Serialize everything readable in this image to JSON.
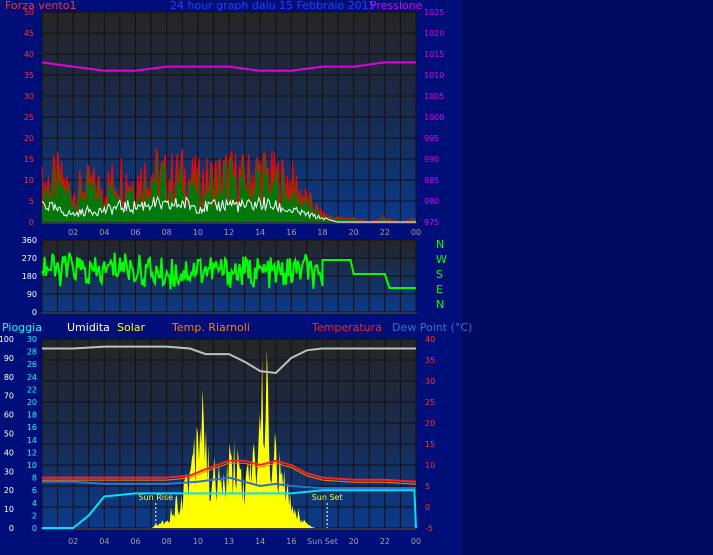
{
  "header": {
    "left_label": "Forza vento1",
    "title": "24 hour graph dalu 15 Febbraio 2015",
    "right_label": "Pressione"
  },
  "legend": {
    "pioggia": "Pioggia",
    "umidita": "Umidita",
    "solar": "Solar",
    "temp_riarnoli": "Temp. Riarnoli",
    "temperatura": "Temperatura",
    "dew_point": "Dew Point (°C)"
  },
  "hours": [
    "02",
    "04",
    "06",
    "08",
    "10",
    "12",
    "14",
    "16",
    "18",
    "20",
    "22",
    "00"
  ],
  "bottom_hours": [
    "02",
    "04",
    "06",
    "08",
    "10",
    "13",
    "14",
    "16",
    "Sun Set",
    "20",
    "22",
    "00"
  ],
  "compass": [
    "N",
    "W",
    "S",
    "E",
    "N"
  ],
  "colors": {
    "wind": "#ff0000",
    "gust": "#ffffff",
    "wind_avg": "#00a000",
    "pressure": "#e000e0",
    "direction": "#00ff00",
    "humidity": "#c0c0c0",
    "solar": "#ffff00",
    "temperature": "#ff2020",
    "dew_point": "#3070d0",
    "rain": "#00e0ff"
  },
  "chart_data": [
    {
      "type": "line",
      "name": "wind-pressure",
      "y_left": {
        "label": "Forza vento1",
        "ticks": [
          0,
          5,
          10,
          15,
          20,
          25,
          30,
          35,
          40,
          45,
          50
        ],
        "range": [
          0,
          50
        ]
      },
      "y_right": {
        "label": "Pressione",
        "ticks": [
          975,
          980,
          985,
          990,
          995,
          1000,
          1005,
          1010,
          1015,
          1020,
          1025
        ],
        "range": [
          975,
          1025
        ]
      },
      "x_ticks": [
        "02",
        "04",
        "06",
        "08",
        "10",
        "12",
        "14",
        "16",
        "18",
        "20",
        "22",
        "00"
      ],
      "series": [
        {
          "key": "wind",
          "hours": [
            0,
            1,
            2,
            3,
            4,
            5,
            6,
            7,
            8,
            9,
            10,
            11,
            12,
            13,
            14,
            15,
            16,
            17,
            18,
            19,
            20,
            21,
            22,
            23,
            24
          ],
          "values": [
            10,
            12,
            8,
            10,
            9,
            13,
            11,
            14,
            12,
            13,
            11,
            12,
            13,
            12,
            14,
            12,
            11,
            6,
            2,
            1,
            1,
            0,
            1,
            0,
            1
          ]
        },
        {
          "key": "gust",
          "hours": [
            0,
            1,
            2,
            3,
            4,
            5,
            6,
            7,
            8,
            9,
            10,
            11,
            12,
            13,
            14,
            15,
            16,
            17,
            18,
            19,
            20,
            21,
            22,
            23,
            24
          ],
          "values": [
            5,
            3,
            2,
            3,
            3,
            4,
            4,
            5,
            4,
            5,
            4,
            4,
            5,
            4,
            5,
            4,
            3,
            2,
            1,
            0,
            0,
            0,
            0,
            0,
            0
          ]
        },
        {
          "key": "pressure",
          "hours": [
            0,
            2,
            4,
            6,
            8,
            10,
            12,
            14,
            16,
            18,
            20,
            22,
            24
          ],
          "values": [
            1013,
            1012,
            1011,
            1011,
            1012,
            1012,
            1012,
            1011,
            1011,
            1012,
            1012,
            1013,
            1013
          ]
        }
      ]
    },
    {
      "type": "line",
      "name": "wind-direction",
      "y_ticks": [
        0,
        90,
        180,
        270,
        360
      ],
      "y_range": [
        0,
        360
      ],
      "compass": [
        "N",
        "W",
        "S",
        "E",
        "N"
      ],
      "series": [
        {
          "key": "direction",
          "hours": [
            0,
            1,
            2,
            3,
            4,
            5,
            6,
            7,
            8,
            9,
            10,
            11,
            12,
            13,
            14,
            15,
            16,
            17,
            18,
            19,
            20,
            21,
            22,
            23,
            24
          ],
          "values": [
            240,
            200,
            230,
            190,
            200,
            240,
            210,
            200,
            190,
            200,
            220,
            210,
            200,
            200,
            200,
            190,
            200,
            220,
            120,
            260,
            250,
            190,
            190,
            120,
            120
          ]
        }
      ]
    },
    {
      "type": "line",
      "name": "weather",
      "y_left_outer": {
        "label": "Pioggia",
        "ticks": [
          0,
          10,
          20,
          30,
          40,
          50,
          60,
          70,
          80,
          90,
          100
        ]
      },
      "y_left_inner": {
        "ticks": [
          0,
          2,
          4,
          6,
          8,
          10,
          12,
          14,
          16,
          18,
          20,
          22,
          24,
          26,
          28,
          30
        ]
      },
      "y_right": {
        "label": "Dew Point (°C)",
        "ticks": [
          -5,
          0,
          5,
          10,
          15,
          20,
          25,
          30,
          35,
          40
        ],
        "range": [
          -5,
          40
        ]
      },
      "x_ticks": [
        "02",
        "04",
        "06",
        "08",
        "10",
        "13",
        "14",
        "16",
        "Sun Set",
        "20",
        "22",
        "00"
      ],
      "annotations": [
        {
          "text": "Sun Rise",
          "hour": 7.3
        },
        {
          "text": "Sun Set",
          "hour": 18.3
        }
      ],
      "series": [
        {
          "key": "humidity",
          "hours": [
            0,
            2,
            4,
            6,
            8,
            9.5,
            10.5,
            12,
            13,
            14,
            15,
            16,
            17,
            18,
            20,
            22,
            24
          ],
          "values": [
            95,
            95,
            96,
            96,
            96,
            95,
            92,
            92,
            88,
            83,
            82,
            90,
            94,
            95,
            95,
            95,
            95
          ]
        },
        {
          "key": "temperature",
          "hours": [
            0,
            2,
            4,
            6,
            8,
            9.5,
            10.5,
            12,
            13,
            14,
            15,
            16,
            17,
            18,
            20,
            22,
            24
          ],
          "values": [
            7,
            7,
            7,
            7,
            7,
            7.5,
            9,
            11,
            11,
            10,
            11,
            10,
            8,
            7,
            6.5,
            6.5,
            6
          ]
        },
        {
          "key": "dew_point",
          "hours": [
            0,
            2,
            4,
            6,
            8,
            10,
            12,
            13,
            14,
            15,
            16,
            18,
            20,
            22,
            24
          ],
          "values": [
            6,
            6,
            5.5,
            5.5,
            5.5,
            6,
            7,
            6,
            5,
            5.5,
            5,
            4.5,
            4.5,
            4.5,
            4.5
          ]
        },
        {
          "key": "rain",
          "hours": [
            0,
            2,
            3,
            4,
            6,
            8,
            10,
            12,
            14,
            16,
            18,
            20,
            22,
            23.9,
            24
          ],
          "values": [
            0,
            0,
            2,
            5,
            5.5,
            5.5,
            5.5,
            5.5,
            5.5,
            5.5,
            6,
            6,
            6,
            6,
            0
          ]
        },
        {
          "key": "solar",
          "hours": [
            7,
            8,
            9,
            9.5,
            10,
            10.3,
            10.6,
            11,
            11.5,
            12,
            12.5,
            13,
            13.5,
            14,
            14.3,
            14.6,
            15,
            15.5,
            16,
            16.5,
            17,
            17.5
          ],
          "values": [
            0,
            2,
            8,
            14,
            24,
            33,
            14,
            12,
            10,
            14,
            16,
            9,
            14,
            24,
            37,
            20,
            16,
            10,
            6,
            3,
            1,
            0
          ]
        }
      ]
    }
  ]
}
